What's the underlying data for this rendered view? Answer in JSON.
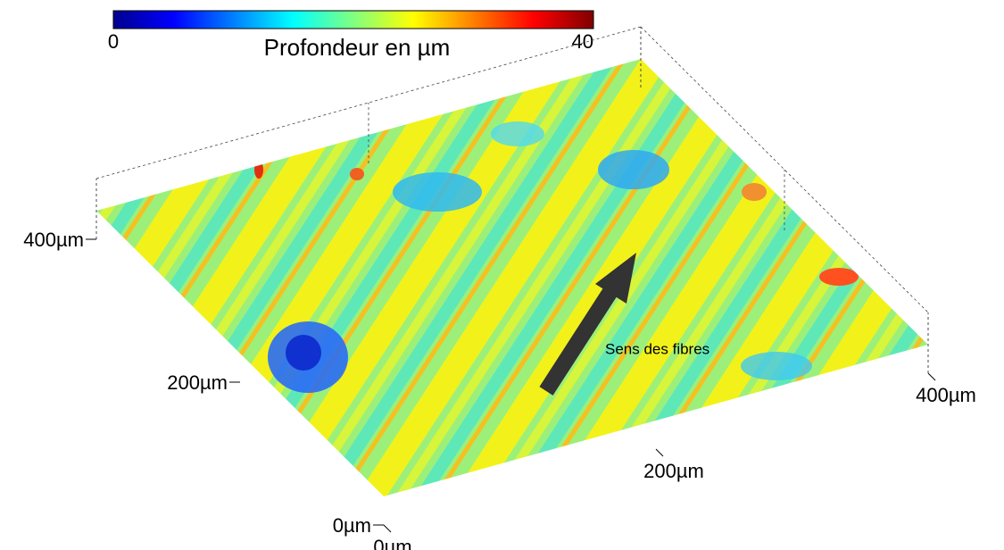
{
  "chart_data": {
    "type": "surface",
    "colorbar": {
      "label": "Profondeur en µm",
      "lim": [
        0,
        40
      ],
      "ticks": [
        0,
        40
      ],
      "colors": [
        "#00008f",
        "#0000ff",
        "#0080ff",
        "#00ffff",
        "#80ff80",
        "#ffff00",
        "#ff8000",
        "#ff0000",
        "#800000"
      ]
    },
    "xlim": [
      0,
      400
    ],
    "xticks": [
      {
        "value": 0,
        "label": "0µm"
      },
      {
        "value": 200,
        "label": "200µm"
      },
      {
        "value": 400,
        "label": "400µm"
      }
    ],
    "ylim": [
      0,
      400
    ],
    "yticks": [
      {
        "value": 0,
        "label": "0µm"
      },
      {
        "value": 200,
        "label": "200µm"
      },
      {
        "value": 400,
        "label": "400µm"
      }
    ],
    "annotation": "Sens des fibres"
  }
}
